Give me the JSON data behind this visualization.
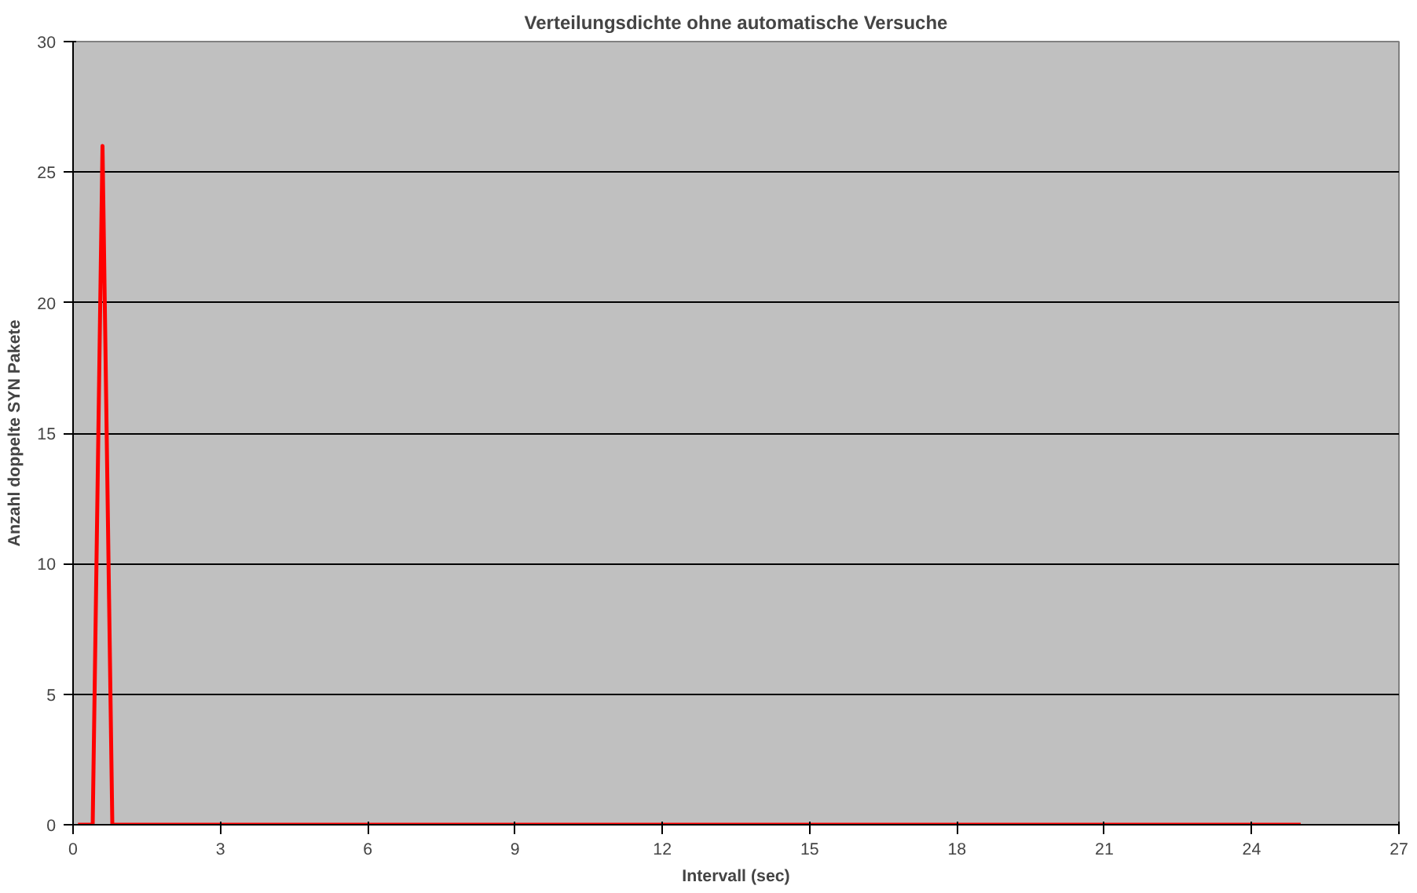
{
  "chart_data": {
    "type": "line",
    "title": "Verteilungsdichte ohne automatische Versuche",
    "xlabel": "Intervall (sec)",
    "ylabel": "Anzahl doppelte SYN Pakete",
    "x": [
      0.1,
      0.4,
      0.6,
      0.8,
      25
    ],
    "series": [
      {
        "color": "#ff0000",
        "values": [
          0,
          0,
          26,
          0,
          0
        ]
      }
    ],
    "xlim": [
      0,
      27
    ],
    "xticks": [
      0,
      3,
      6,
      9,
      12,
      15,
      18,
      21,
      24,
      27
    ],
    "ylim": [
      0,
      30
    ],
    "yticks": [
      0,
      5,
      10,
      15,
      20,
      25,
      30
    ],
    "grid": "y",
    "marker": "none",
    "line_style": "solid"
  }
}
